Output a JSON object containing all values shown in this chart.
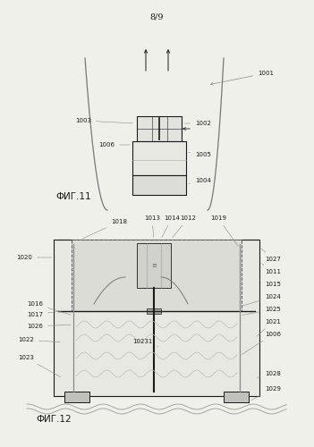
{
  "bg_color": "#f0f0eb",
  "page_label": "8/9",
  "fig11_label": "ФИГ.11",
  "fig12_label": "ФИГ.12",
  "col": "#1a1a1a",
  "gray": "#888888",
  "lightgray": "#cccccc",
  "ann_fs": 5.0,
  "fig_label_fs": 7.5
}
